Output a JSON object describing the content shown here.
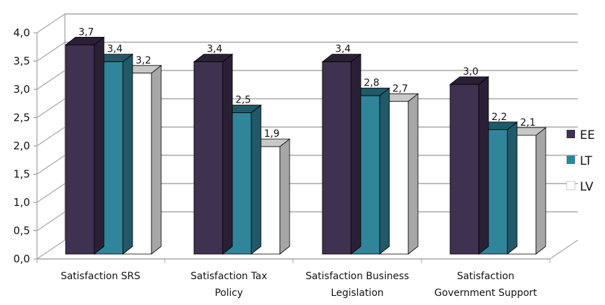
{
  "chart_data": {
    "type": "bar",
    "style": "3d-clustered-column",
    "title": "",
    "xlabel": "",
    "ylabel": "",
    "ylim": [
      0,
      4
    ],
    "ytick_step": 0.5,
    "yticks": [
      "0,0",
      "0,5",
      "1,0",
      "1,5",
      "2,0",
      "2,5",
      "3,0",
      "3,5",
      "4,0"
    ],
    "grid": true,
    "legend_position": "right",
    "categories": [
      [
        "Satisfaction SRS"
      ],
      [
        "Satisfaction Tax",
        "Policy"
      ],
      [
        "Satisfaction Business",
        "Legislation"
      ],
      [
        "Satisfaction",
        "Government Support"
      ]
    ],
    "series": [
      {
        "name": "EE",
        "color": "#3f3150",
        "side": "#2a2035",
        "top": "#2a2035",
        "values": [
          3.7,
          3.4,
          3.4,
          3.0
        ],
        "labels": [
          "3,7",
          "3,4",
          "3,4",
          "3,0"
        ]
      },
      {
        "name": "LT",
        "color": "#31859b",
        "side": "#215968",
        "top": "#215968",
        "values": [
          3.4,
          2.5,
          2.8,
          2.2
        ],
        "labels": [
          "3,4",
          "2,5",
          "2,8",
          "2,2"
        ]
      },
      {
        "name": "LV",
        "color": "#ffffff",
        "side": "#a6a6a6",
        "top": "#c8c8c8",
        "values": [
          3.2,
          1.9,
          2.7,
          2.1
        ],
        "labels": [
          "3,2",
          "1,9",
          "2,7",
          "2,1"
        ]
      }
    ]
  }
}
